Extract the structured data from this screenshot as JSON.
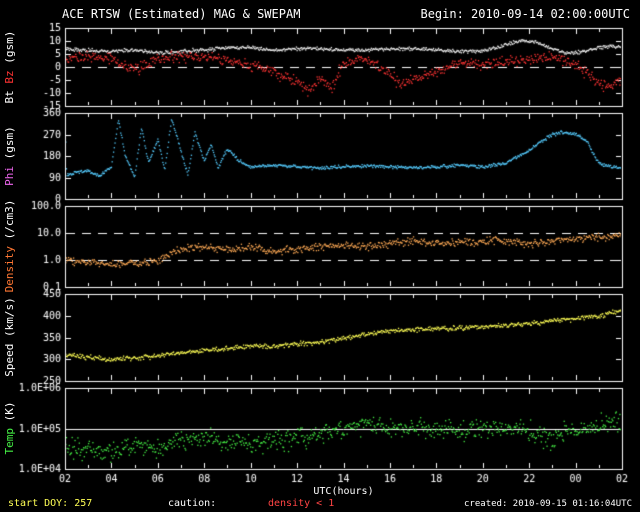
{
  "header": {
    "title_left": "ACE RTSW (Estimated) MAG & SWEPAM",
    "title_right": "Begin: 2010-09-14 02:00:00UTC"
  },
  "footer": {
    "start_doy": "start DOY: 257",
    "caution_label": "caution:",
    "caution_value": "density < 1",
    "created": "created: 2010-09-15 01:16:04UTC"
  },
  "colors": {
    "background": "#000000",
    "frame": "#ffffff",
    "start_doy": "#ffff55",
    "caution_label": "#ffffff",
    "caution_value": "#ff4444",
    "created": "#ffffff"
  },
  "x_axis": {
    "title": "UTC(hours)",
    "min": 2,
    "max": 26,
    "major_tick_step": 2,
    "minor_tick_step": 1,
    "tick_labels": [
      "02",
      "04",
      "06",
      "08",
      "10",
      "12",
      "14",
      "16",
      "18",
      "20",
      "22",
      "00",
      "02"
    ]
  },
  "chart_data": [
    {
      "type": "scatter",
      "panel": "magnetic-field",
      "yscale": "linear",
      "ylim": [
        -15,
        15
      ],
      "yticks": [
        15,
        10,
        5,
        0,
        -5,
        -10,
        -15
      ],
      "ytick_labels": [
        "15",
        "10",
        "5",
        "0",
        "-5",
        "-10",
        "-15"
      ],
      "ylabel_parts": [
        {
          "text": "Bt",
          "color": "#ffffff"
        },
        {
          "text": " Bz",
          "color": "#ff3333"
        },
        {
          "text": " (gsm)",
          "color": "#ffffff"
        }
      ],
      "ref_lines": [
        {
          "value": 0,
          "style": "dashed",
          "color": "#ffffff"
        }
      ],
      "series": [
        {
          "name": "Bt",
          "color": "#f2f2f2",
          "noise": 1.0,
          "x": [
            2,
            3,
            4,
            5,
            6,
            7,
            8,
            9,
            10,
            11,
            12,
            13,
            14,
            15,
            16,
            17,
            18,
            19,
            20,
            21,
            21.5,
            22,
            22.5,
            23,
            23.5,
            24,
            24.5,
            25,
            25.5,
            26
          ],
          "y": [
            7,
            6.5,
            6,
            6.5,
            5.5,
            6,
            6.5,
            7.5,
            7.5,
            6.5,
            7,
            7,
            6.5,
            6.5,
            7,
            7,
            6.5,
            6,
            6,
            8.5,
            10,
            10,
            9,
            7,
            5.5,
            5.5,
            6,
            7.5,
            8,
            7.5
          ]
        },
        {
          "name": "Bz",
          "color": "#ff3333",
          "noise": 3.0,
          "x": [
            2,
            3,
            4,
            5,
            6,
            7,
            8,
            9,
            10,
            11,
            12,
            12.5,
            13,
            13.5,
            14,
            15,
            16,
            16.5,
            17,
            18,
            19,
            20,
            21,
            22,
            23,
            24,
            24.5,
            25,
            25.5,
            26
          ],
          "y": [
            3,
            4,
            3,
            -1,
            3,
            4,
            4,
            3,
            1,
            -2,
            -6,
            -9,
            -4,
            -8,
            2,
            3,
            -3,
            -7,
            -5,
            -2,
            2,
            1,
            2,
            3,
            4,
            1,
            -3,
            -6,
            -8,
            -5
          ]
        }
      ]
    },
    {
      "type": "scatter",
      "panel": "phi-angle",
      "yscale": "linear",
      "ylim": [
        0,
        360
      ],
      "yticks": [
        360,
        270,
        180,
        90,
        0
      ],
      "ytick_labels": [
        "360",
        "270",
        "180",
        "90",
        "0"
      ],
      "ylabel_parts": [
        {
          "text": "Phi",
          "color": "#ee66ee"
        },
        {
          "text": " (gsm)",
          "color": "#ffffff"
        }
      ],
      "ref_lines": [],
      "series": [
        {
          "name": "Phi",
          "color": "#55ccff",
          "noise": 10,
          "x": [
            2,
            2.07,
            2.5,
            3,
            3.5,
            4,
            4.3,
            4.6,
            5,
            5.3,
            5.6,
            6,
            6.3,
            6.6,
            7,
            7.3,
            7.6,
            8,
            8.3,
            8.6,
            9,
            9.5,
            10,
            11,
            12,
            13,
            14,
            15,
            16,
            17,
            18,
            19,
            20,
            21,
            21.5,
            22,
            22.5,
            23,
            23.5,
            24,
            24.5,
            25,
            25.5,
            26
          ],
          "y": [
            360,
            100,
            110,
            120,
            95,
            135,
            330,
            180,
            90,
            300,
            150,
            250,
            120,
            340,
            200,
            100,
            280,
            160,
            230,
            130,
            210,
            160,
            135,
            140,
            135,
            130,
            135,
            140,
            135,
            130,
            135,
            140,
            135,
            150,
            180,
            200,
            240,
            270,
            280,
            270,
            240,
            150,
            135,
            130
          ]
        }
      ]
    },
    {
      "type": "scatter",
      "panel": "density",
      "yscale": "log",
      "ylim": [
        0.1,
        100
      ],
      "yticks": [
        100,
        10,
        1,
        0.1
      ],
      "ytick_labels": [
        "100.0",
        "10.0",
        "1.0",
        "0.1"
      ],
      "ylabel_parts": [
        {
          "text": "Density",
          "color": "#ff7733"
        },
        {
          "text": " (/cm3)",
          "color": "#ffffff"
        }
      ],
      "ref_lines": [
        {
          "value": 10,
          "style": "dashed",
          "color": "#ffffff"
        },
        {
          "value": 1,
          "style": "dashed",
          "color": "#ffffff"
        }
      ],
      "series": [
        {
          "name": "Density",
          "color": "#ffaa55",
          "noise": 0.2,
          "x": [
            2,
            3,
            4,
            5,
            6,
            7,
            8,
            9,
            10,
            11,
            12,
            13,
            14,
            15,
            16,
            17,
            18,
            19,
            20,
            21,
            22,
            23,
            24,
            25,
            26
          ],
          "y": [
            1.0,
            0.8,
            0.7,
            0.75,
            0.9,
            2.5,
            3,
            2.5,
            3,
            2,
            2.5,
            3,
            3.5,
            3,
            4,
            5,
            4,
            4.5,
            5,
            5,
            4,
            5,
            6,
            7,
            8
          ]
        }
      ]
    },
    {
      "type": "scatter",
      "panel": "speed",
      "yscale": "linear",
      "ylim": [
        250,
        450
      ],
      "yticks": [
        450,
        400,
        350,
        300,
        250
      ],
      "ytick_labels": [
        "450",
        "400",
        "350",
        "300",
        "250"
      ],
      "ylabel_parts": [
        {
          "text": "Speed",
          "color": "#ffffff"
        },
        {
          "text": " (km/s)",
          "color": "#ffffff"
        }
      ],
      "ref_lines": [],
      "series": [
        {
          "name": "Speed",
          "color": "#ffff55",
          "noise": 8,
          "x": [
            2,
            3,
            4,
            5,
            6,
            7,
            8,
            9,
            10,
            11,
            12,
            13,
            14,
            15,
            16,
            17,
            18,
            19,
            20,
            21,
            22,
            23,
            24,
            25,
            26
          ],
          "y": [
            310,
            305,
            300,
            303,
            308,
            315,
            320,
            325,
            330,
            330,
            335,
            340,
            348,
            358,
            365,
            368,
            370,
            372,
            375,
            378,
            382,
            388,
            393,
            400,
            412
          ]
        }
      ]
    },
    {
      "type": "scatter",
      "panel": "temperature",
      "yscale": "log",
      "ylim": [
        10000,
        1000000
      ],
      "yticks": [
        1000000,
        100000,
        10000
      ],
      "ytick_labels": [
        "1.0E+06",
        "1.0E+05",
        "1.0E+04"
      ],
      "ylabel_parts": [
        {
          "text": "Temp",
          "color": "#44ee44"
        },
        {
          "text": " (K)",
          "color": "#ffffff"
        }
      ],
      "ref_lines": [
        {
          "value": 100000,
          "style": "solid",
          "color": "#ffffff"
        }
      ],
      "series": [
        {
          "name": "Temp",
          "color": "#44ee44",
          "noise": 0.35,
          "x": [
            2,
            2.06,
            3,
            4,
            5,
            6,
            7,
            8,
            9,
            10,
            11,
            12,
            13,
            14,
            15,
            16,
            17,
            18,
            19,
            20,
            21,
            22,
            23,
            24,
            25,
            26
          ],
          "y": [
            100000,
            35000,
            30000,
            25000,
            40000,
            30000,
            50000,
            60000,
            50000,
            40000,
            50000,
            60000,
            70000,
            100000,
            120000,
            100000,
            110000,
            100000,
            90000,
            100000,
            110000,
            80000,
            50000,
            100000,
            120000,
            150000
          ]
        }
      ]
    }
  ]
}
